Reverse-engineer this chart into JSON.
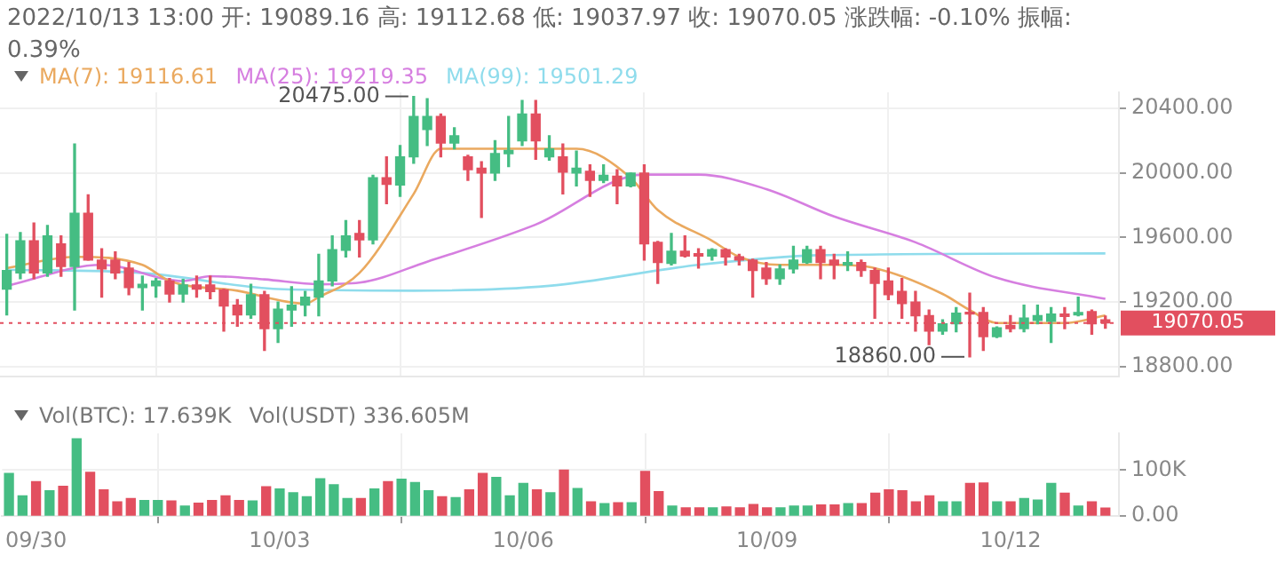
{
  "chart_data": [
    {
      "type": "candlestick",
      "title": "2022/10/13 13:00 开: 19089.16 高: 19112.68 低: 19037.97 收: 19070.05 涨跌幅: -0.10% 振幅: 0.39%",
      "x": [
        "2022-09-29T16:00",
        "2022-09-29T20:00",
        "2022-09-30T00:00",
        "2022-09-30T04:00",
        "2022-09-30T08:00",
        "2022-09-30T12:00",
        "2022-09-30T16:00",
        "2022-09-30T20:00",
        "2022-10-01T00:00",
        "2022-10-01T04:00",
        "2022-10-01T08:00",
        "2022-10-01T12:00",
        "2022-10-01T16:00",
        "2022-10-01T20:00",
        "2022-10-02T00:00",
        "2022-10-02T04:00",
        "2022-10-02T08:00",
        "2022-10-02T12:00",
        "2022-10-02T16:00",
        "2022-10-02T20:00",
        "2022-10-03T00:00",
        "2022-10-03T04:00",
        "2022-10-03T08:00",
        "2022-10-03T12:00",
        "2022-10-03T16:00",
        "2022-10-03T20:00",
        "2022-10-04T00:00",
        "2022-10-04T04:00",
        "2022-10-04T08:00",
        "2022-10-04T12:00",
        "2022-10-04T16:00",
        "2022-10-04T20:00",
        "2022-10-05T00:00",
        "2022-10-05T04:00",
        "2022-10-05T08:00",
        "2022-10-05T12:00",
        "2022-10-05T16:00",
        "2022-10-05T20:00",
        "2022-10-06T00:00",
        "2022-10-06T04:00",
        "2022-10-06T08:00",
        "2022-10-06T12:00",
        "2022-10-06T16:00",
        "2022-10-06T20:00",
        "2022-10-07T00:00",
        "2022-10-07T04:00",
        "2022-10-07T08:00",
        "2022-10-07T12:00",
        "2022-10-07T16:00",
        "2022-10-07T20:00",
        "2022-10-08T00:00",
        "2022-10-08T04:00",
        "2022-10-08T08:00",
        "2022-10-08T12:00",
        "2022-10-08T16:00",
        "2022-10-08T20:00",
        "2022-10-09T00:00",
        "2022-10-09T04:00",
        "2022-10-09T08:00",
        "2022-10-09T12:00",
        "2022-10-09T16:00",
        "2022-10-09T20:00",
        "2022-10-10T00:00",
        "2022-10-10T04:00",
        "2022-10-10T08:00",
        "2022-10-10T12:00",
        "2022-10-10T16:00",
        "2022-10-10T20:00",
        "2022-10-11T00:00",
        "2022-10-11T04:00",
        "2022-10-11T08:00",
        "2022-10-11T12:00",
        "2022-10-11T16:00",
        "2022-10-11T20:00",
        "2022-10-12T00:00",
        "2022-10-12T04:00",
        "2022-10-12T08:00",
        "2022-10-12T12:00",
        "2022-10-12T16:00",
        "2022-10-12T20:00",
        "2022-10-13T00:00",
        "2022-10-13T04:00"
      ],
      "ohlc": [
        [
          19280,
          19620,
          19120,
          19395
        ],
        [
          19380,
          19630,
          19345,
          19580
        ],
        [
          19580,
          19690,
          19345,
          19380
        ],
        [
          19380,
          19675,
          19360,
          19610
        ],
        [
          19560,
          19610,
          19360,
          19420
        ],
        [
          19420,
          20180,
          19150,
          19750
        ],
        [
          19750,
          19865,
          19460,
          19460
        ],
        [
          19460,
          19530,
          19230,
          19405
        ],
        [
          19460,
          19510,
          19345,
          19380
        ],
        [
          19410,
          19445,
          19245,
          19290
        ],
        [
          19290,
          19360,
          19150,
          19310
        ],
        [
          19300,
          19345,
          19230,
          19330
        ],
        [
          19330,
          19345,
          19200,
          19250
        ],
        [
          19250,
          19340,
          19200,
          19305
        ],
        [
          19305,
          19360,
          19230,
          19280
        ],
        [
          19306,
          19360,
          19220,
          19265
        ],
        [
          19275,
          19280,
          19020,
          19175
        ],
        [
          19180,
          19215,
          19050,
          19120
        ],
        [
          19120,
          19310,
          19100,
          19245
        ],
        [
          19245,
          19265,
          18900,
          19035
        ],
        [
          19035,
          19200,
          18950,
          19155
        ],
        [
          19150,
          19295,
          19050,
          19180
        ],
        [
          19180,
          19265,
          19115,
          19230
        ],
        [
          19230,
          19495,
          19115,
          19330
        ],
        [
          19330,
          19610,
          19300,
          19525
        ],
        [
          19520,
          19705,
          19480,
          19610
        ],
        [
          19625,
          19705,
          19480,
          19585
        ],
        [
          19585,
          19985,
          19560,
          19970
        ],
        [
          19970,
          20100,
          19810,
          19930
        ],
        [
          19925,
          20170,
          19855,
          20100
        ],
        [
          20100,
          20475,
          20060,
          20350
        ],
        [
          20270,
          20460,
          20170,
          20350
        ],
        [
          20350,
          20365,
          20100,
          20185
        ],
        [
          20185,
          20280,
          20150,
          20230
        ],
        [
          20100,
          20110,
          19955,
          20020
        ],
        [
          20030,
          20070,
          19725,
          20000
        ],
        [
          20000,
          20200,
          19955,
          20120
        ],
        [
          20120,
          20350,
          20040,
          20140
        ],
        [
          20200,
          20450,
          20170,
          20365
        ],
        [
          20365,
          20450,
          20085,
          20200
        ],
        [
          20100,
          20230,
          20080,
          20150
        ],
        [
          20100,
          20180,
          19870,
          20005
        ],
        [
          20000,
          20135,
          19920,
          20030
        ],
        [
          20010,
          20050,
          19855,
          19955
        ],
        [
          19955,
          20050,
          19940,
          19985
        ],
        [
          19980,
          20020,
          19810,
          19920
        ],
        [
          19920,
          20000,
          19915,
          20000
        ],
        [
          20000,
          20050,
          19460,
          19560
        ],
        [
          19570,
          19575,
          19315,
          19445
        ],
        [
          19440,
          19625,
          19430,
          19515
        ],
        [
          19515,
          19610,
          19480,
          19485
        ],
        [
          19500,
          19530,
          19410,
          19485
        ],
        [
          19485,
          19530,
          19460,
          19525
        ],
        [
          19525,
          19530,
          19430,
          19480
        ],
        [
          19480,
          19495,
          19430,
          19460
        ],
        [
          19460,
          19465,
          19230,
          19395
        ],
        [
          19410,
          19445,
          19310,
          19345
        ],
        [
          19345,
          19430,
          19310,
          19405
        ],
        [
          19405,
          19545,
          19380,
          19460
        ],
        [
          19445,
          19545,
          19440,
          19525
        ],
        [
          19525,
          19545,
          19345,
          19445
        ],
        [
          19460,
          19495,
          19345,
          19430
        ],
        [
          19430,
          19510,
          19395,
          19445
        ],
        [
          19445,
          19460,
          19360,
          19395
        ],
        [
          19395,
          19410,
          19100,
          19315
        ],
        [
          19330,
          19410,
          19215,
          19245
        ],
        [
          19265,
          19345,
          19100,
          19190
        ],
        [
          19200,
          19265,
          19020,
          19115
        ],
        [
          19115,
          19150,
          18935,
          19020
        ],
        [
          19020,
          19090,
          19000,
          19065
        ],
        [
          19065,
          19165,
          19015,
          19130
        ],
        [
          19135,
          19255,
          18860,
          19125
        ],
        [
          19135,
          19165,
          18900,
          18985
        ],
        [
          18985,
          19045,
          18980,
          19040
        ],
        [
          19055,
          19115,
          19015,
          19035
        ],
        [
          19035,
          19180,
          19015,
          19100
        ],
        [
          19085,
          19180,
          19065,
          19115
        ],
        [
          19080,
          19165,
          18950,
          19125
        ],
        [
          19125,
          19165,
          19035,
          19110
        ],
        [
          19120,
          19230,
          19115,
          19135
        ],
        [
          19140,
          19150,
          19000,
          19065
        ],
        [
          19089.16,
          19112.68,
          19037.97,
          19070.05
        ]
      ],
      "colors": [
        "#45bd83",
        "#45bd83",
        "#e24f5f",
        "#45bd83",
        "#e24f5f",
        "#45bd83",
        "#e24f5f",
        "#e24f5f",
        "#e24f5f",
        "#e24f5f",
        "#45bd83",
        "#45bd83",
        "#e24f5f",
        "#45bd83",
        "#e24f5f",
        "#e24f5f",
        "#e24f5f",
        "#e24f5f",
        "#45bd83",
        "#e24f5f",
        "#45bd83",
        "#45bd83",
        "#45bd83",
        "#45bd83",
        "#45bd83",
        "#45bd83",
        "#e24f5f",
        "#45bd83",
        "#e24f5f",
        "#45bd83",
        "#45bd83",
        "#45bd83",
        "#e24f5f",
        "#45bd83",
        "#e24f5f",
        "#e24f5f",
        "#45bd83",
        "#45bd83",
        "#45bd83",
        "#e24f5f",
        "#45bd83",
        "#e24f5f",
        "#45bd83",
        "#e24f5f",
        "#45bd83",
        "#e24f5f",
        "#45bd83",
        "#e24f5f",
        "#e24f5f",
        "#45bd83",
        "#e24f5f",
        "#e24f5f",
        "#45bd83",
        "#e24f5f",
        "#e24f5f",
        "#e24f5f",
        "#e24f5f",
        "#45bd83",
        "#45bd83",
        "#45bd83",
        "#e24f5f",
        "#e24f5f",
        "#45bd83",
        "#e24f5f",
        "#e24f5f",
        "#e24f5f",
        "#e24f5f",
        "#e24f5f",
        "#e24f5f",
        "#45bd83",
        "#45bd83",
        "#e24f5f",
        "#e24f5f",
        "#45bd83",
        "#e24f5f",
        "#45bd83",
        "#45bd83",
        "#45bd83",
        "#e24f5f",
        "#45bd83",
        "#e24f5f",
        "#e24f5f"
      ],
      "series": [
        {
          "name": "MA(7): 19116.61",
          "color": "#eaa95f",
          "type": "line",
          "x": [
            "2022-09-29T16:00",
            "2022-09-30T12:00",
            "2022-10-01T08:00",
            "2022-10-01T16:00",
            "2022-10-02T12:00",
            "2022-10-03T08:00",
            "2022-10-03T12:00",
            "2022-10-04T00:00",
            "2022-10-04T16:00",
            "2022-10-05T00:00",
            "2022-10-06T16:00",
            "2022-10-07T08:00",
            "2022-10-07T16:00",
            "2022-10-08T08:00",
            "2022-10-08T16:00",
            "2022-10-09T04:00",
            "2022-10-09T20:00",
            "2022-10-10T08:00",
            "2022-10-11T04:00",
            "2022-10-11T12:00",
            "2022-10-11T20:00",
            "2022-10-12T16:00",
            "2022-10-13T04:00"
          ],
          "values": [
            19410,
            19480,
            19430,
            19330,
            19270,
            19190,
            19230,
            19380,
            19870,
            20150,
            20150,
            19970,
            19770,
            19580,
            19480,
            19430,
            19430,
            19410,
            19250,
            19150,
            19070,
            19070,
            19116.61
          ]
        },
        {
          "name": "MA(25): 19219.35",
          "color": "#d67fe0",
          "type": "line",
          "x": [
            "2022-09-29T16:00",
            "2022-09-30T20:00",
            "2022-10-01T20:00",
            "2022-10-02T04:00",
            "2022-10-02T20:00",
            "2022-10-03T12:00",
            "2022-10-04T00:00",
            "2022-10-04T20:00",
            "2022-10-06T04:00",
            "2022-10-07T12:00",
            "2022-10-08T04:00",
            "2022-10-09T00:00",
            "2022-10-09T20:00",
            "2022-10-10T20:00",
            "2022-10-11T20:00",
            "2022-10-13T04:00"
          ],
          "values": [
            19300,
            19430,
            19330,
            19360,
            19340,
            19310,
            19320,
            19450,
            19680,
            19990,
            19990,
            19900,
            19730,
            19570,
            19350,
            19219.35
          ]
        },
        {
          "name": "MA(99): 19501.29",
          "color": "#8fdcec",
          "type": "line",
          "x": [
            "2022-09-29T16:00",
            "2022-10-01T08:00",
            "2022-10-03T00:00",
            "2022-10-04T16:00",
            "2022-10-06T08:00",
            "2022-10-08T04:00",
            "2022-10-09T16:00",
            "2022-10-13T04:00"
          ],
          "values": [
            19400,
            19380,
            19280,
            19270,
            19300,
            19430,
            19490,
            19501.29
          ]
        }
      ],
      "xlim": [
        "2022-09-29T14:00",
        "2022-10-13T08:00"
      ],
      "xticks": [
        {
          "value": "2022-09-30",
          "label": null
        },
        {
          "value": "2022-10-03",
          "label": null
        },
        {
          "value": "2022-10-06",
          "label": null
        },
        {
          "value": "2022-10-09",
          "label": null
        },
        {
          "value": "2022-10-12",
          "label": null
        }
      ],
      "ylim": [
        18740,
        20500
      ],
      "yticks": [
        {
          "value": 18800,
          "label": "18800.00"
        },
        {
          "value": 19200,
          "label": "19200.00"
        },
        {
          "value": 19600,
          "label": "19600.00"
        },
        {
          "value": 20000,
          "label": "20000.00"
        },
        {
          "value": 20400,
          "label": "20400.00"
        }
      ],
      "tick_labels": "y",
      "grid": true,
      "legend": "top",
      "marker": "none",
      "annotations": [
        {
          "text": "20475.00",
          "x": "2022-10-04T16:00",
          "y": 20475
        },
        {
          "text": "18860.00",
          "x": "2022-10-11T12:00",
          "y": 18860
        }
      ],
      "ref_lines": [
        {
          "axis": "y",
          "value": 19070.05,
          "label": "19070.05",
          "color": "#e24f5f",
          "line_style": "dotted"
        }
      ]
    },
    {
      "type": "bar",
      "x": [
        "2022-09-29T16:00",
        "2022-09-29T20:00",
        "2022-09-30T00:00",
        "2022-09-30T04:00",
        "2022-09-30T08:00",
        "2022-09-30T12:00",
        "2022-09-30T16:00",
        "2022-09-30T20:00",
        "2022-10-01T00:00",
        "2022-10-01T04:00",
        "2022-10-01T08:00",
        "2022-10-01T12:00",
        "2022-10-01T16:00",
        "2022-10-01T20:00",
        "2022-10-02T00:00",
        "2022-10-02T04:00",
        "2022-10-02T08:00",
        "2022-10-02T12:00",
        "2022-10-02T16:00",
        "2022-10-02T20:00",
        "2022-10-03T00:00",
        "2022-10-03T04:00",
        "2022-10-03T08:00",
        "2022-10-03T12:00",
        "2022-10-03T16:00",
        "2022-10-03T20:00",
        "2022-10-04T00:00",
        "2022-10-04T04:00",
        "2022-10-04T08:00",
        "2022-10-04T12:00",
        "2022-10-04T16:00",
        "2022-10-04T20:00",
        "2022-10-05T00:00",
        "2022-10-05T04:00",
        "2022-10-05T08:00",
        "2022-10-05T12:00",
        "2022-10-05T16:00",
        "2022-10-05T20:00",
        "2022-10-06T00:00",
        "2022-10-06T04:00",
        "2022-10-06T08:00",
        "2022-10-06T12:00",
        "2022-10-06T16:00",
        "2022-10-06T20:00",
        "2022-10-07T00:00",
        "2022-10-07T04:00",
        "2022-10-07T08:00",
        "2022-10-07T12:00",
        "2022-10-07T16:00",
        "2022-10-07T20:00",
        "2022-10-08T00:00",
        "2022-10-08T04:00",
        "2022-10-08T08:00",
        "2022-10-08T12:00",
        "2022-10-08T16:00",
        "2022-10-08T20:00",
        "2022-10-09T00:00",
        "2022-10-09T04:00",
        "2022-10-09T08:00",
        "2022-10-09T12:00",
        "2022-10-09T16:00",
        "2022-10-09T20:00",
        "2022-10-10T00:00",
        "2022-10-10T04:00",
        "2022-10-10T08:00",
        "2022-10-10T12:00",
        "2022-10-10T16:00",
        "2022-10-10T20:00",
        "2022-10-11T00:00",
        "2022-10-11T04:00",
        "2022-10-11T08:00",
        "2022-10-11T12:00",
        "2022-10-11T16:00",
        "2022-10-11T20:00",
        "2022-10-12T00:00",
        "2022-10-12T04:00",
        "2022-10-12T08:00",
        "2022-10-12T12:00",
        "2022-10-12T16:00",
        "2022-10-12T20:00",
        "2022-10-13T00:00",
        "2022-10-13T04:00"
      ],
      "values": [
        93,
        44,
        75,
        55,
        65,
        168,
        95,
        57,
        31,
        38,
        34,
        34,
        33,
        22,
        28,
        34,
        44,
        34,
        33,
        64,
        59,
        51,
        42,
        81,
        68,
        38,
        38,
        59,
        75,
        80,
        73,
        55,
        42,
        40,
        57,
        93,
        84,
        44,
        71,
        57,
        51,
        100,
        60,
        31,
        27,
        29,
        29,
        97,
        53,
        22,
        18,
        18,
        18,
        20,
        18,
        25,
        18,
        18,
        22,
        22,
        24,
        24,
        27,
        27,
        50,
        57,
        55,
        31,
        44,
        31,
        31,
        71,
        72,
        31,
        31,
        38,
        35,
        71,
        50,
        22,
        31,
        17.639
      ],
      "colors": [
        "#45bd83",
        "#45bd83",
        "#e24f5f",
        "#45bd83",
        "#e24f5f",
        "#45bd83",
        "#e24f5f",
        "#e24f5f",
        "#e24f5f",
        "#e24f5f",
        "#45bd83",
        "#45bd83",
        "#e24f5f",
        "#45bd83",
        "#e24f5f",
        "#e24f5f",
        "#e24f5f",
        "#e24f5f",
        "#45bd83",
        "#e24f5f",
        "#45bd83",
        "#45bd83",
        "#45bd83",
        "#45bd83",
        "#45bd83",
        "#45bd83",
        "#e24f5f",
        "#45bd83",
        "#e24f5f",
        "#45bd83",
        "#45bd83",
        "#45bd83",
        "#e24f5f",
        "#45bd83",
        "#e24f5f",
        "#e24f5f",
        "#45bd83",
        "#45bd83",
        "#45bd83",
        "#e24f5f",
        "#45bd83",
        "#e24f5f",
        "#45bd83",
        "#e24f5f",
        "#45bd83",
        "#e24f5f",
        "#45bd83",
        "#e24f5f",
        "#e24f5f",
        "#45bd83",
        "#e24f5f",
        "#e24f5f",
        "#45bd83",
        "#e24f5f",
        "#e24f5f",
        "#e24f5f",
        "#e24f5f",
        "#45bd83",
        "#45bd83",
        "#45bd83",
        "#e24f5f",
        "#e24f5f",
        "#45bd83",
        "#e24f5f",
        "#e24f5f",
        "#e24f5f",
        "#e24f5f",
        "#e24f5f",
        "#e24f5f",
        "#45bd83",
        "#45bd83",
        "#e24f5f",
        "#e24f5f",
        "#45bd83",
        "#e24f5f",
        "#45bd83",
        "#45bd83",
        "#45bd83",
        "#e24f5f",
        "#45bd83",
        "#e24f5f",
        "#e24f5f"
      ],
      "xlim": [
        "2022-09-29T14:00",
        "2022-10-13T08:00"
      ],
      "xticks": [
        {
          "value": "2022-09-30",
          "label": "09/30"
        },
        {
          "value": "2022-10-03",
          "label": "10/03"
        },
        {
          "value": "2022-10-06",
          "label": "10/06"
        },
        {
          "value": "2022-10-09",
          "label": "10/09"
        },
        {
          "value": "2022-10-12",
          "label": "10/12"
        }
      ],
      "ylim": [
        0,
        180
      ],
      "yticks": [
        {
          "value": 0,
          "label": "0.00"
        },
        {
          "value": 100,
          "label": "100K"
        }
      ],
      "grid": true,
      "annotations": [
        "Vol(BTC): 17.639K",
        "Vol(USDT) 336.605M"
      ]
    }
  ]
}
